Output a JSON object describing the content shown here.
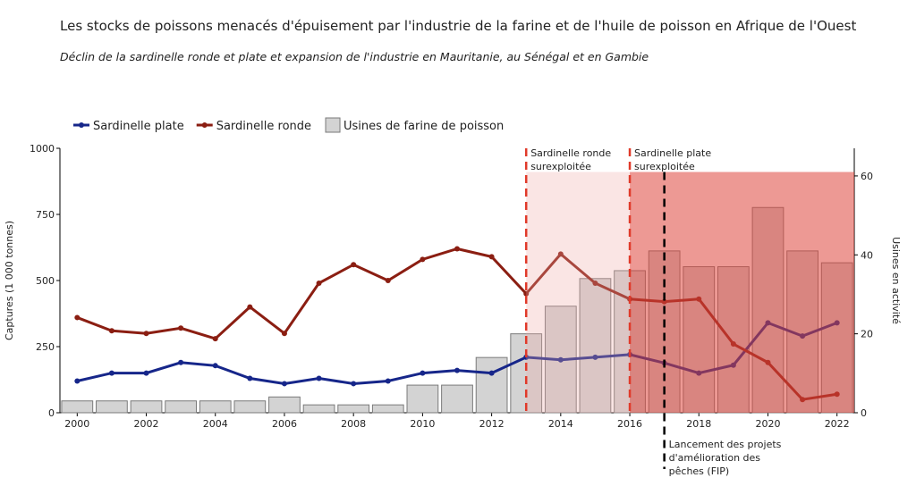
{
  "chart_data": {
    "type": "combo",
    "title": "Les stocks de poissons menacés d'épuisement par l'industrie de la farine et de l'huile de poisson en Afrique de l'Ouest",
    "subtitle": "Déclin de la sardinelle ronde et plate et expansion de l'industrie en Mauritanie, au Sénégal et en Gambie",
    "y_label": "Captures (1 000 tonnes)",
    "y2_label": "Usines en activité",
    "x": [
      2000,
      2001,
      2002,
      2003,
      2004,
      2005,
      2006,
      2007,
      2008,
      2009,
      2010,
      2011,
      2012,
      2013,
      2014,
      2015,
      2016,
      2017,
      2018,
      2019,
      2020,
      2021,
      2022
    ],
    "series": [
      {
        "name": "Sardinelle plate",
        "type": "line",
        "color": "#16268a",
        "values": [
          120,
          150,
          150,
          190,
          178,
          130,
          110,
          130,
          110,
          120,
          150,
          160,
          150,
          210,
          200,
          210,
          220,
          188,
          150,
          180,
          340,
          290,
          340
        ]
      },
      {
        "name": "Sardinelle ronde",
        "type": "line",
        "color": "#8b1e12",
        "values": [
          360,
          310,
          300,
          320,
          280,
          400,
          300,
          490,
          560,
          500,
          580,
          620,
          590,
          450,
          600,
          490,
          430,
          420,
          430,
          260,
          190,
          50,
          70
        ]
      },
      {
        "name": "Usines de farine de poisson",
        "type": "bar",
        "axis": "y2",
        "color": "#d3d3d3",
        "values": [
          3,
          3,
          3,
          3,
          3,
          3,
          4,
          2,
          2,
          2,
          7,
          7,
          14,
          20,
          27,
          34,
          36,
          41,
          37,
          37,
          52,
          41,
          38
        ]
      }
    ],
    "xlim": [
      1999.5,
      2022.5
    ],
    "xticks": [
      2000,
      2002,
      2004,
      2006,
      2008,
      2010,
      2012,
      2014,
      2016,
      2018,
      2020,
      2022
    ],
    "ylim": [
      0,
      1000
    ],
    "yticks": [
      0,
      250,
      500,
      750,
      1000
    ],
    "y2lim": [
      0,
      67
    ],
    "y2ticks": [
      0,
      20,
      40,
      60
    ],
    "shaded_regions": [
      {
        "from": 2013,
        "to": 2016,
        "top": 61,
        "color": "rgba(240,170,165,0.3)"
      },
      {
        "from": 2016,
        "to": 2022.5,
        "top": 61,
        "color": "rgba(222,70,60,0.55)"
      }
    ],
    "annotations": [
      {
        "x": 2013,
        "color": "#e03a2a",
        "text": [
          "Sardinelle ronde",
          "surexploitée"
        ]
      },
      {
        "x": 2016,
        "color": "#e03a2a",
        "text": [
          "Sardinelle plate",
          "surexploitée"
        ]
      },
      {
        "x": 2017,
        "color": "#000000",
        "text": [
          "Lancement des projets",
          "d'amélioration des",
          "pêches (FIP)"
        ]
      }
    ],
    "legend": "top-left"
  }
}
